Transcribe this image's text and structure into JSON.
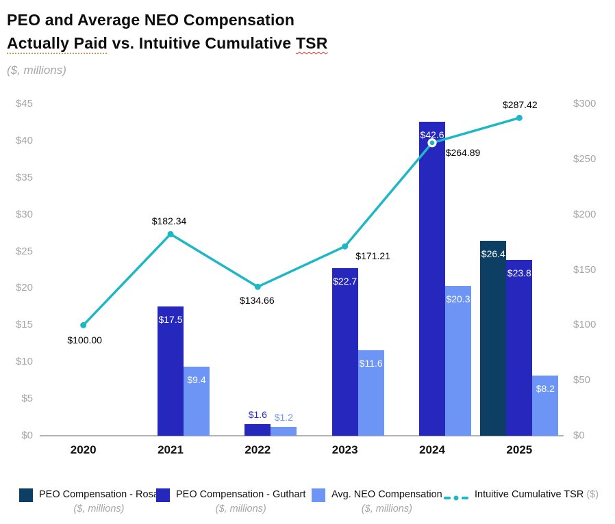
{
  "header": {
    "title_line1": "PEO and Average NEO Compensation",
    "title_line2_underlined": "Actually Paid",
    "title_line2_middle": " vs. Intuitive Cumulative ",
    "title_line2_tsr": "TSR",
    "subtitle": "($, millions)"
  },
  "chart_data": {
    "type": "combo",
    "categories": [
      "2020",
      "2021",
      "2022",
      "2023",
      "2024",
      "2025"
    ],
    "left_axis": {
      "min": 0,
      "max": 45,
      "tick_step": 5,
      "ticks": [
        "$0",
        "$5",
        "$10",
        "$15",
        "$20",
        "$25",
        "$30",
        "$35",
        "$40",
        "$45"
      ],
      "units": "($, millions)"
    },
    "right_axis": {
      "min": 0,
      "max": 300,
      "tick_step": 50,
      "ticks": [
        "$0",
        "$50",
        "$100",
        "$150",
        "$200",
        "$250",
        "$300"
      ],
      "units": "($)"
    },
    "gridlines": false,
    "legend_position": "bottom",
    "series": [
      {
        "name": "PEO Compensation - Rosa",
        "type": "bar",
        "color": "#0d3e63",
        "values": [
          null,
          null,
          null,
          null,
          null,
          26.4
        ],
        "labels": [
          null,
          null,
          null,
          null,
          null,
          "$26.4"
        ]
      },
      {
        "name": "PEO Compensation - Guthart",
        "type": "bar",
        "color": "#2628bd",
        "values": [
          null,
          17.5,
          1.6,
          22.7,
          42.6,
          23.8
        ],
        "labels": [
          null,
          "$17.5",
          "$1.6",
          "$22.7",
          "$42.6",
          "$23.8"
        ]
      },
      {
        "name": "Avg. NEO Compensation",
        "type": "bar",
        "color": "#6d95f6",
        "values": [
          null,
          9.4,
          1.2,
          11.6,
          20.3,
          8.2
        ],
        "labels": [
          null,
          "$9.4",
          "$1.2",
          "$11.6",
          "$20.3",
          "$8.2"
        ]
      },
      {
        "name": "Intuitive Cumulative TSR",
        "type": "line",
        "color": "#1db7c6",
        "values": [
          100.0,
          182.34,
          134.66,
          171.21,
          264.89,
          287.42
        ],
        "labels": [
          "$100.00",
          "$182.34",
          "$134.66",
          "$171.21",
          "$264.89",
          "$287.42"
        ]
      }
    ]
  },
  "legend": [
    {
      "label": "PEO Compensation - Rosa",
      "sub": "($, millions)",
      "swatch": "square",
      "color": "#0d3e63"
    },
    {
      "label": "PEO Compensation - Guthart",
      "sub": "($, millions)",
      "swatch": "square",
      "color": "#2628bd"
    },
    {
      "label": "Avg. NEO Compensation",
      "sub": "($, millions)",
      "swatch": "square",
      "color": "#6d95f6"
    },
    {
      "label": "Intuitive Cumulative TSR",
      "sub_inline": "($)",
      "swatch": "dash-dot-line",
      "color": "#1db7c6"
    }
  ],
  "colors": {
    "bar_rosa": "#0d3e63",
    "bar_guthart": "#2628bd",
    "bar_avg_neo": "#6d95f6",
    "tsr_line": "#1db7c6",
    "axis_text": "#a6a6a6",
    "axis_line": "#b3b3b3",
    "title_text": "#0d0d0d"
  }
}
